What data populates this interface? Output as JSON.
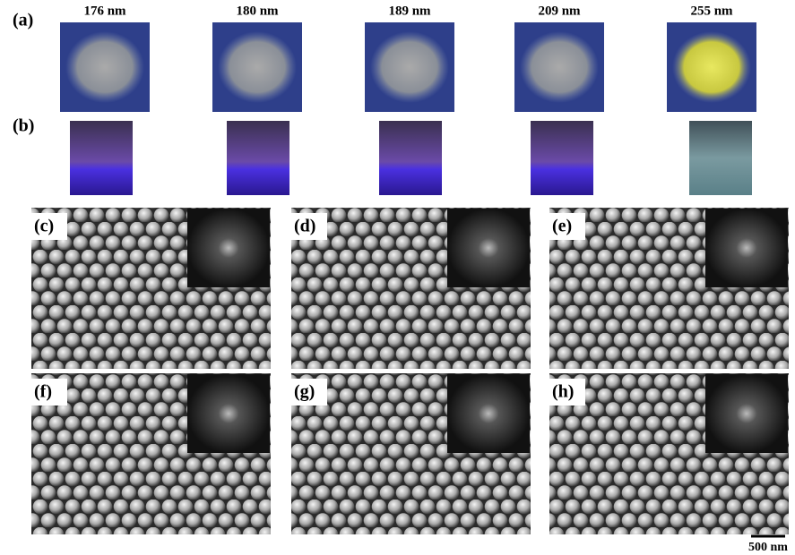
{
  "panels": {
    "a": {
      "label": "(a)",
      "sizes": [
        "176 nm",
        "180 nm",
        "189 nm",
        "209 nm",
        "255 nm"
      ]
    },
    "b": {
      "label": "(b)"
    },
    "sem": [
      "(c)",
      "(d)",
      "(e)",
      "(f)",
      "(g)",
      "(h)"
    ]
  },
  "scale_bar": "500 nm"
}
